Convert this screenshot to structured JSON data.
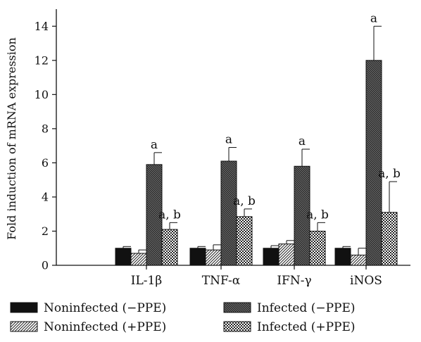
{
  "chart_data": {
    "type": "bar",
    "title": "",
    "xlabel": "",
    "ylabel": "Fold induction of mRNA expression",
    "ylim": [
      0,
      15
    ],
    "yticks": [
      0,
      2,
      4,
      6,
      8,
      10,
      12,
      14
    ],
    "categories": [
      "IL-1β",
      "TNF-α",
      "IFN-γ",
      "iNOS"
    ],
    "legend_position": "bottom",
    "grid": false,
    "series": [
      {
        "name": "Noninfected (−PPE)",
        "pattern": "solid",
        "values": [
          1.0,
          1.0,
          1.0,
          1.0
        ],
        "errors": [
          0.1,
          0.1,
          0.15,
          0.1
        ],
        "labels": [
          "",
          "",
          "",
          ""
        ]
      },
      {
        "name": "Noninfected (+PPE)",
        "pattern": "diagonal-light",
        "values": [
          0.7,
          0.9,
          1.25,
          0.6
        ],
        "errors": [
          0.2,
          0.3,
          0.2,
          0.4
        ],
        "labels": [
          "",
          "",
          "",
          ""
        ]
      },
      {
        "name": "Infected (−PPE)",
        "pattern": "diagonal-dense",
        "values": [
          5.9,
          6.1,
          5.8,
          12.0
        ],
        "errors": [
          0.7,
          0.8,
          1.0,
          2.0
        ],
        "labels": [
          "a",
          "a",
          "a",
          "a"
        ]
      },
      {
        "name": "Infected (+PPE)",
        "pattern": "checker",
        "values": [
          2.1,
          2.85,
          2.0,
          3.1
        ],
        "errors": [
          0.4,
          0.45,
          0.5,
          1.8
        ],
        "labels": [
          "a, b",
          "a, b",
          "a, b",
          "a, b"
        ]
      }
    ]
  }
}
